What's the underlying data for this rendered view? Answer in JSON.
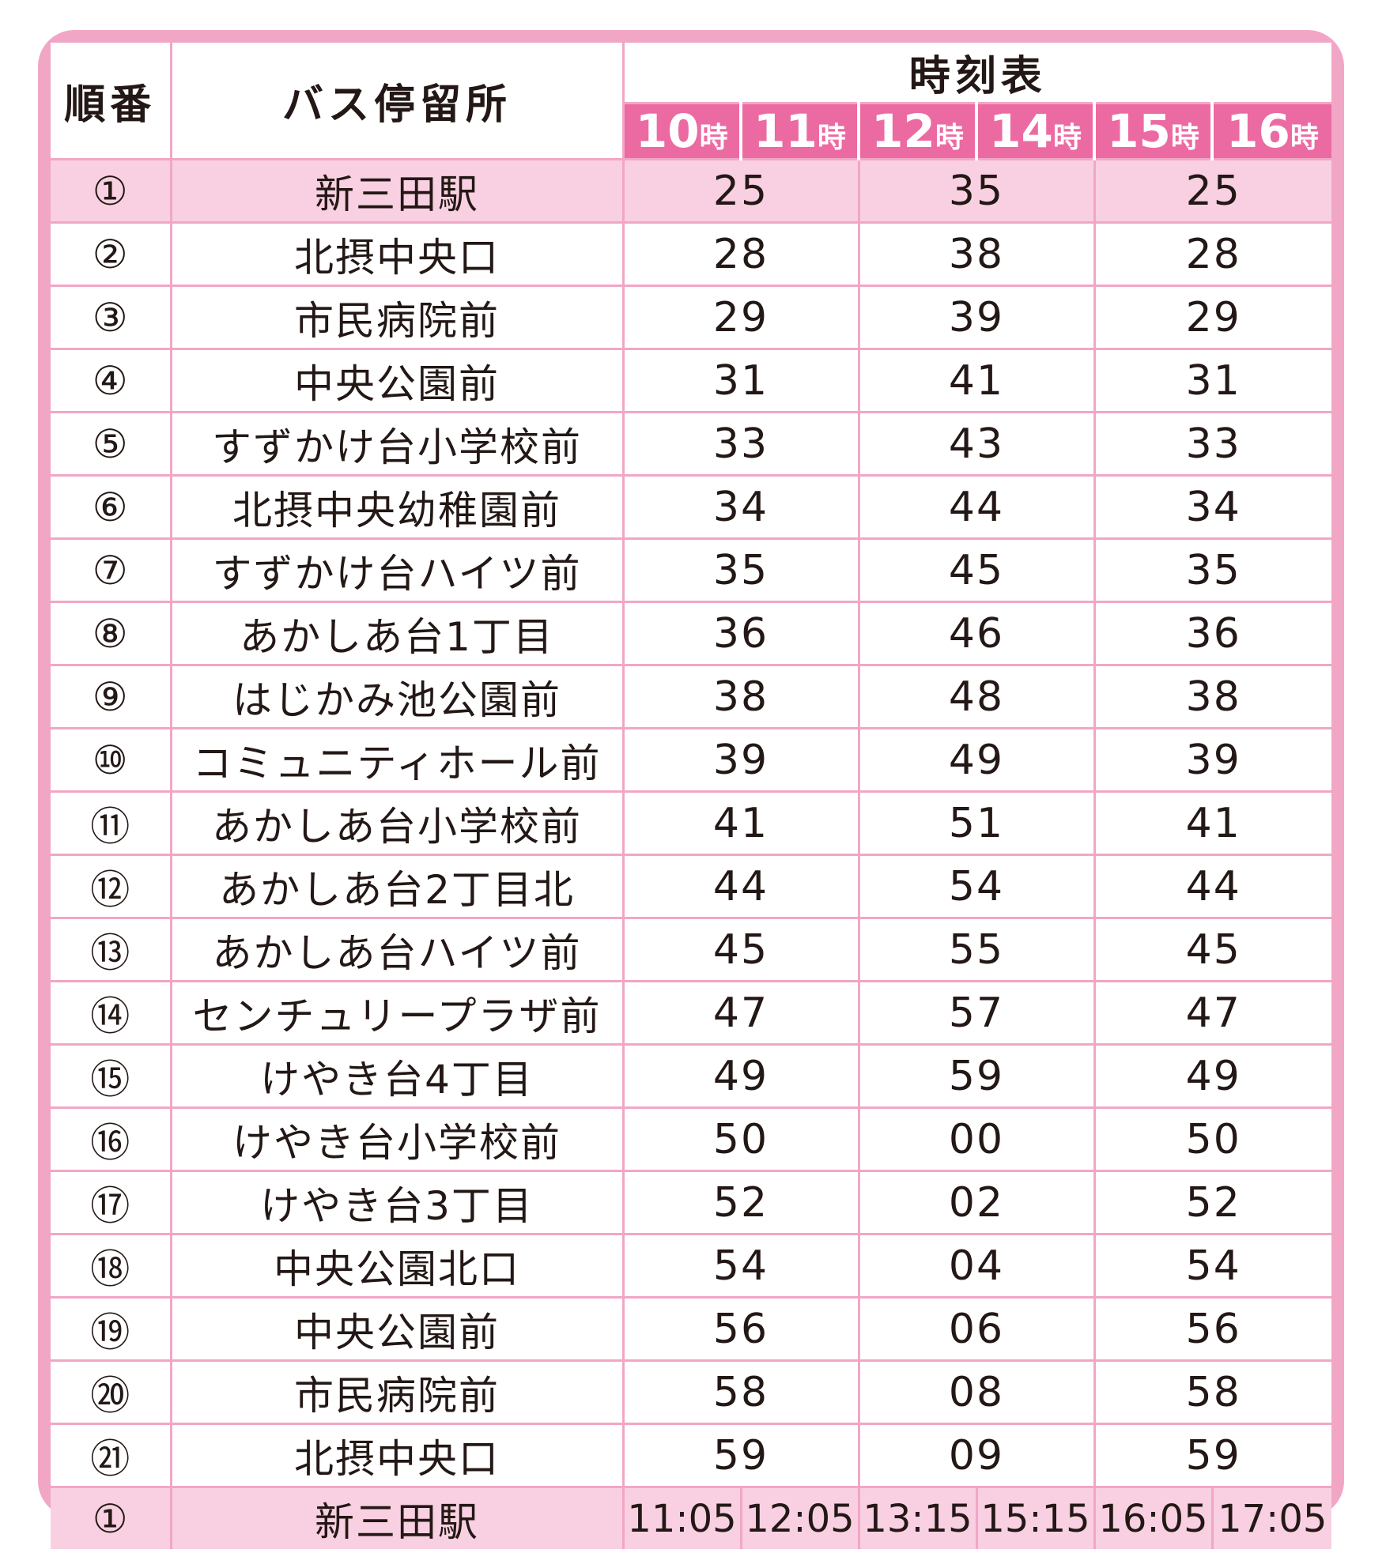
{
  "header": {
    "order": "順番",
    "stop": "バス停留所",
    "timetable": "時刻表",
    "hours": [
      {
        "num": "10",
        "unit": "時"
      },
      {
        "num": "11",
        "unit": "時"
      },
      {
        "num": "12",
        "unit": "時"
      },
      {
        "num": "14",
        "unit": "時"
      },
      {
        "num": "15",
        "unit": "時"
      },
      {
        "num": "16",
        "unit": "時"
      }
    ]
  },
  "rows": [
    {
      "num": "①",
      "stop": "新三田駅",
      "t1": "25",
      "t2": "35",
      "t3": "25"
    },
    {
      "num": "②",
      "stop": "北摂中央口",
      "t1": "28",
      "t2": "38",
      "t3": "28"
    },
    {
      "num": "③",
      "stop": "市民病院前",
      "t1": "29",
      "t2": "39",
      "t3": "29"
    },
    {
      "num": "④",
      "stop": "中央公園前",
      "t1": "31",
      "t2": "41",
      "t3": "31"
    },
    {
      "num": "⑤",
      "stop": "すずかけ台小学校前",
      "t1": "33",
      "t2": "43",
      "t3": "33"
    },
    {
      "num": "⑥",
      "stop": "北摂中央幼稚園前",
      "t1": "34",
      "t2": "44",
      "t3": "34"
    },
    {
      "num": "⑦",
      "stop": "すずかけ台ハイツ前",
      "t1": "35",
      "t2": "45",
      "t3": "35"
    },
    {
      "num": "⑧",
      "stop": "あかしあ台1丁目",
      "t1": "36",
      "t2": "46",
      "t3": "36"
    },
    {
      "num": "⑨",
      "stop": "はじかみ池公園前",
      "t1": "38",
      "t2": "48",
      "t3": "38"
    },
    {
      "num": "⑩",
      "stop": "コミュニティホール前",
      "t1": "39",
      "t2": "49",
      "t3": "39"
    },
    {
      "num": "⑪",
      "stop": "あかしあ台小学校前",
      "t1": "41",
      "t2": "51",
      "t3": "41"
    },
    {
      "num": "⑫",
      "stop": "あかしあ台2丁目北",
      "t1": "44",
      "t2": "54",
      "t3": "44"
    },
    {
      "num": "⑬",
      "stop": "あかしあ台ハイツ前",
      "t1": "45",
      "t2": "55",
      "t3": "45"
    },
    {
      "num": "⑭",
      "stop": "センチュリープラザ前",
      "t1": "47",
      "t2": "57",
      "t3": "47"
    },
    {
      "num": "⑮",
      "stop": "けやき台4丁目",
      "t1": "49",
      "t2": "59",
      "t3": "49"
    },
    {
      "num": "⑯",
      "stop": "けやき台小学校前",
      "t1": "50",
      "t2": "00",
      "t3": "50"
    },
    {
      "num": "⑰",
      "stop": "けやき台3丁目",
      "t1": "52",
      "t2": "02",
      "t3": "52"
    },
    {
      "num": "⑱",
      "stop": "中央公園北口",
      "t1": "54",
      "t2": "04",
      "t3": "54"
    },
    {
      "num": "⑲",
      "stop": "中央公園前",
      "t1": "56",
      "t2": "06",
      "t3": "56"
    },
    {
      "num": "⑳",
      "stop": "市民病院前",
      "t1": "58",
      "t2": "08",
      "t3": "58"
    },
    {
      "num": "㉑",
      "stop": "北摂中央口",
      "t1": "59",
      "t2": "09",
      "t3": "59"
    }
  ],
  "final": {
    "num": "①",
    "stop": "新三田駅",
    "times": [
      "11:05",
      "12:05",
      "13:15",
      "15:15",
      "16:05",
      "17:05"
    ]
  },
  "colors": {
    "border": "#f2a6c6",
    "hour_header": "#ec6aa2",
    "highlight_row": "#f8d0e1"
  }
}
